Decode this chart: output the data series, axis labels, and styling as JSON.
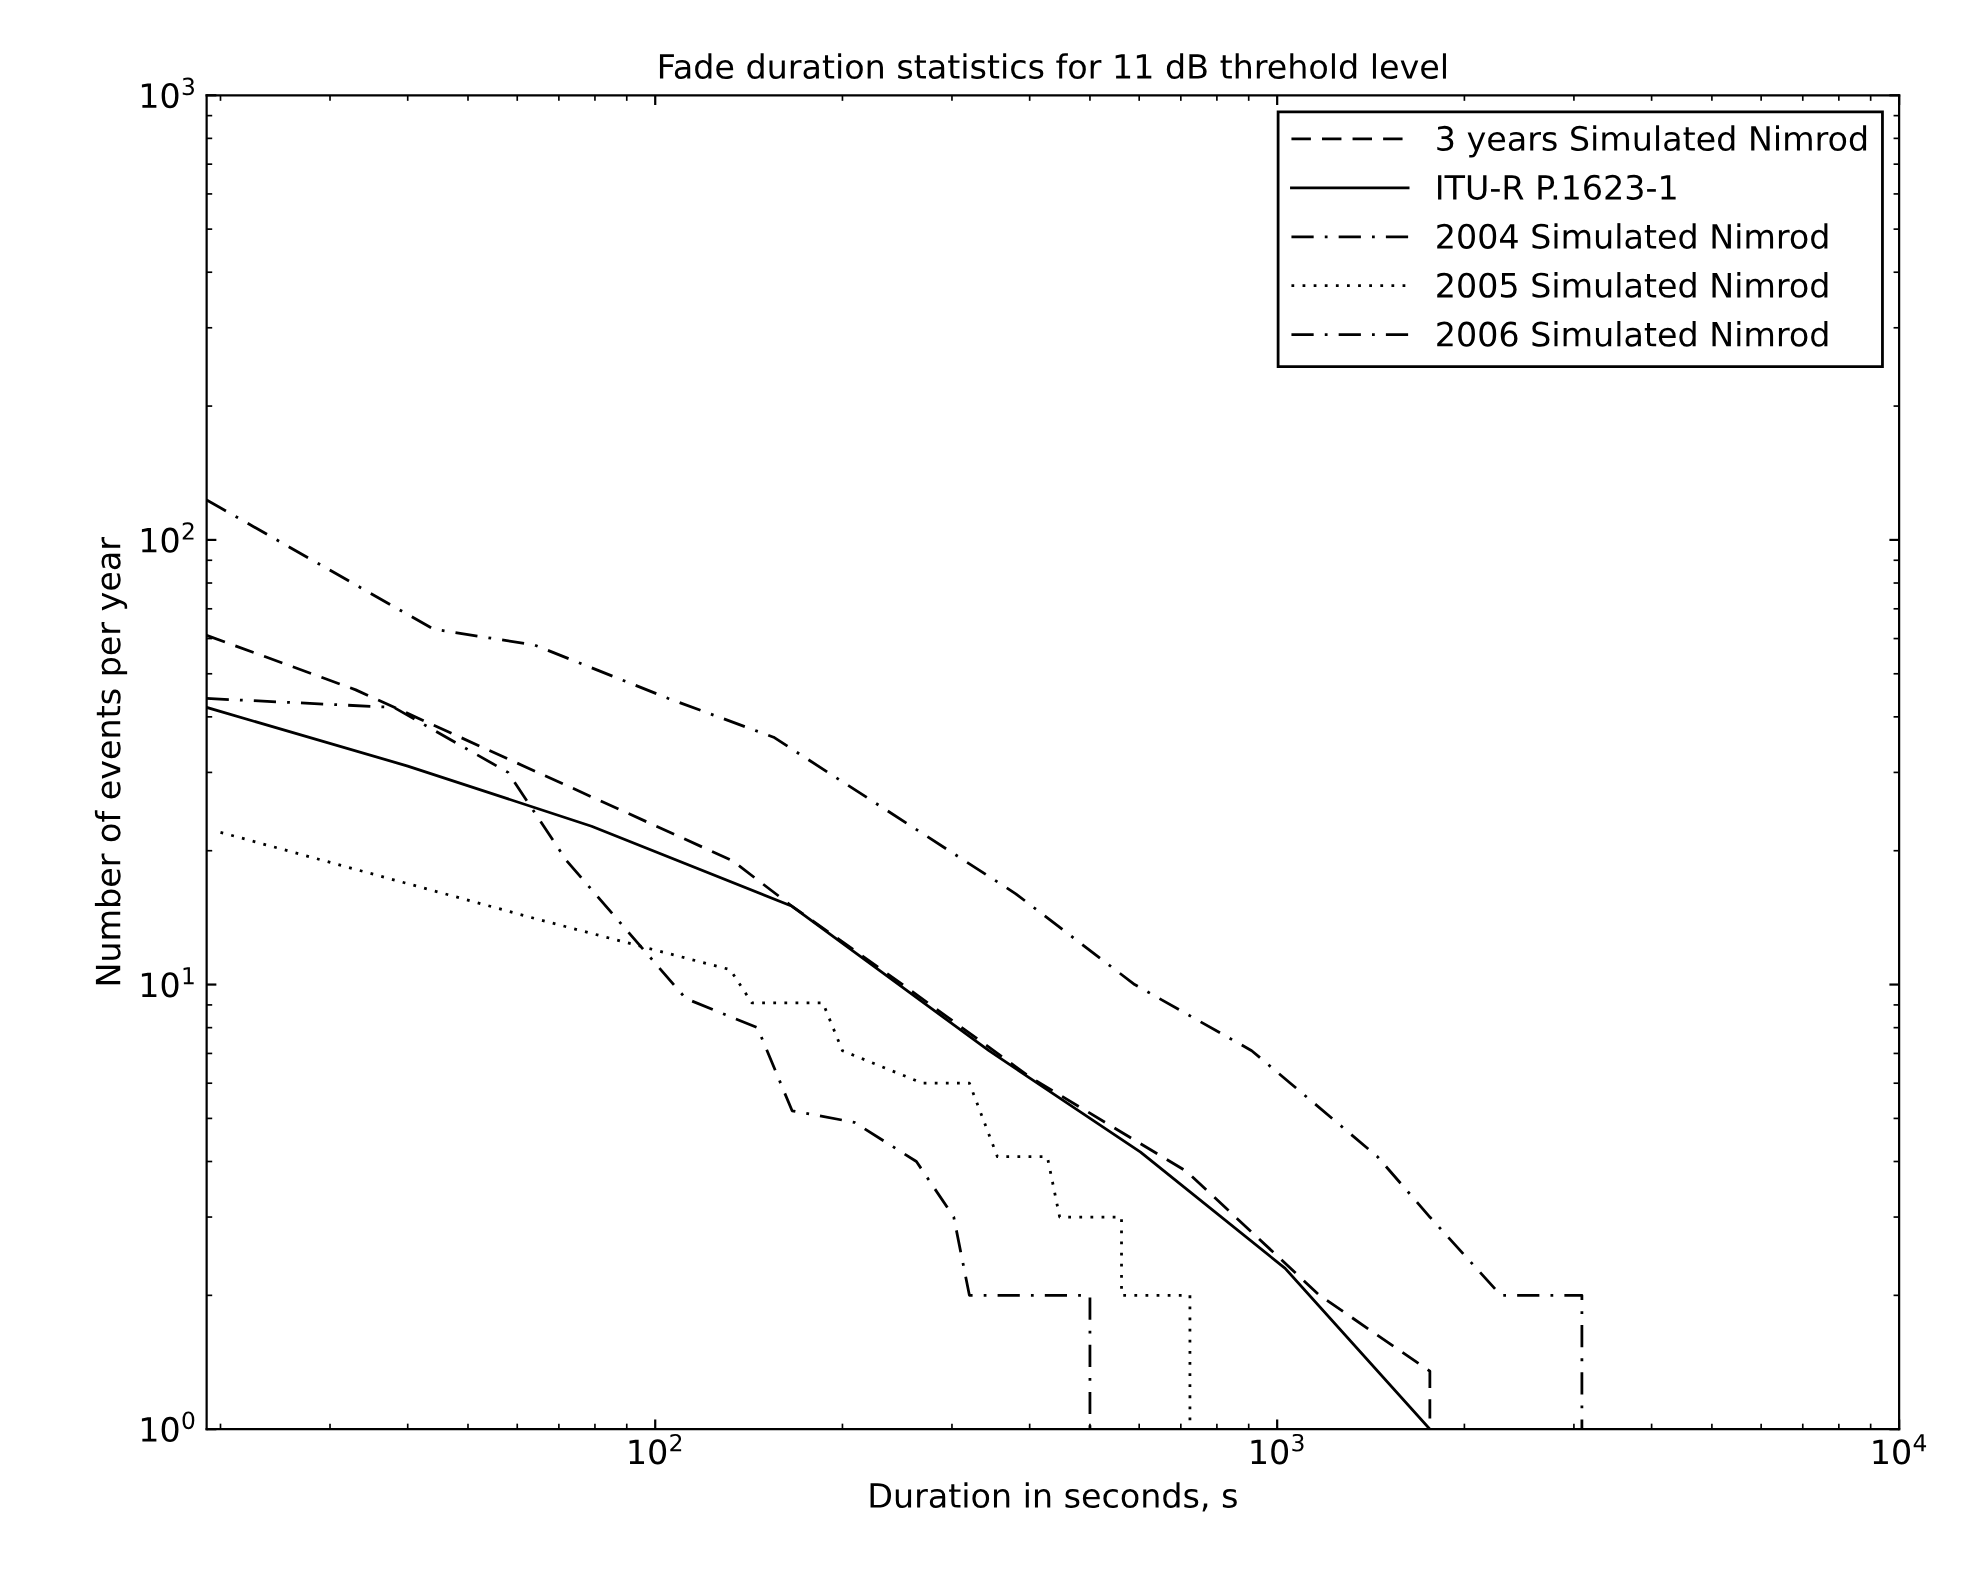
{
  "chart_data": {
    "type": "line",
    "title": "Fade duration statistics for 11 dB threhold level",
    "xlabel": "Duration in seconds, s",
    "ylabel": "Number of events per year",
    "log": "xy",
    "xlim": [
      19,
      10000
    ],
    "ylim": [
      1,
      1000
    ],
    "xticks": [
      {
        "value": 100,
        "label": "10$^{2}$"
      },
      {
        "value": 1000,
        "label": "10$^{3}$"
      },
      {
        "value": 10000,
        "label": "10$^{4}$"
      }
    ],
    "yticks": [
      {
        "value": 1,
        "label": "10$^{0}$"
      },
      {
        "value": 10,
        "label": "10$^{1}$"
      },
      {
        "value": 100,
        "label": "10$^{2}$"
      },
      {
        "value": 1000,
        "label": "10$^{3}$"
      }
    ],
    "grid": false,
    "legend": "top right",
    "marker": "none",
    "series": [
      {
        "name": "3 years Simulated Nimrod",
        "color": "#000000",
        "line_style": "dashed",
        "x": [
          19,
          27,
          33,
          133,
          166,
          250,
          400,
          715,
          1170,
          1760,
          1760
        ],
        "values": [
          61,
          51,
          46,
          19,
          15,
          10,
          6.2,
          3.8,
          2.0,
          1.35,
          1
        ]
      },
      {
        "name": "ITU-R P.1623-1",
        "color": "#000000",
        "line_style": "solid",
        "x": [
          19,
          40,
          79,
          166,
          344,
          603,
          1030,
          1760
        ],
        "values": [
          42,
          31,
          22.7,
          15,
          7.1,
          4.2,
          2.3,
          1
        ]
      },
      {
        "name": "2004 Simulated Nimrod",
        "color": "#000000",
        "line_style": "dashdot",
        "x": [
          19,
          44,
          64,
          105,
          155,
          380,
          590,
          910,
          1050,
          1450,
          1760,
          2290,
          3090,
          3090
        ],
        "values": [
          123,
          63,
          58,
          44,
          36,
          16,
          10,
          7.1,
          6,
          4.1,
          3,
          2,
          2,
          1
        ]
      },
      {
        "name": "2005 Simulated Nimrod",
        "color": "#000000",
        "line_style": "dotted",
        "x": [
          20,
          65,
          132,
          143,
          186,
          200,
          269,
          320,
          355,
          427,
          447,
          562,
          562,
          724,
          724
        ],
        "values": [
          22,
          14,
          10.8,
          9.1,
          9.1,
          7.1,
          6,
          6,
          4.1,
          4.1,
          3,
          3,
          2,
          2,
          1
        ]
      },
      {
        "name": "2006 Simulated Nimrod",
        "color": "#000000",
        "line_style": "dashdot",
        "x": [
          19,
          38,
          58,
          72,
          112,
          146,
          166,
          209,
          263,
          302,
          320,
          500,
          500
        ],
        "values": [
          44,
          42,
          30,
          19,
          9.3,
          8,
          5.2,
          4.9,
          4,
          3,
          2,
          2,
          1
        ]
      }
    ]
  }
}
